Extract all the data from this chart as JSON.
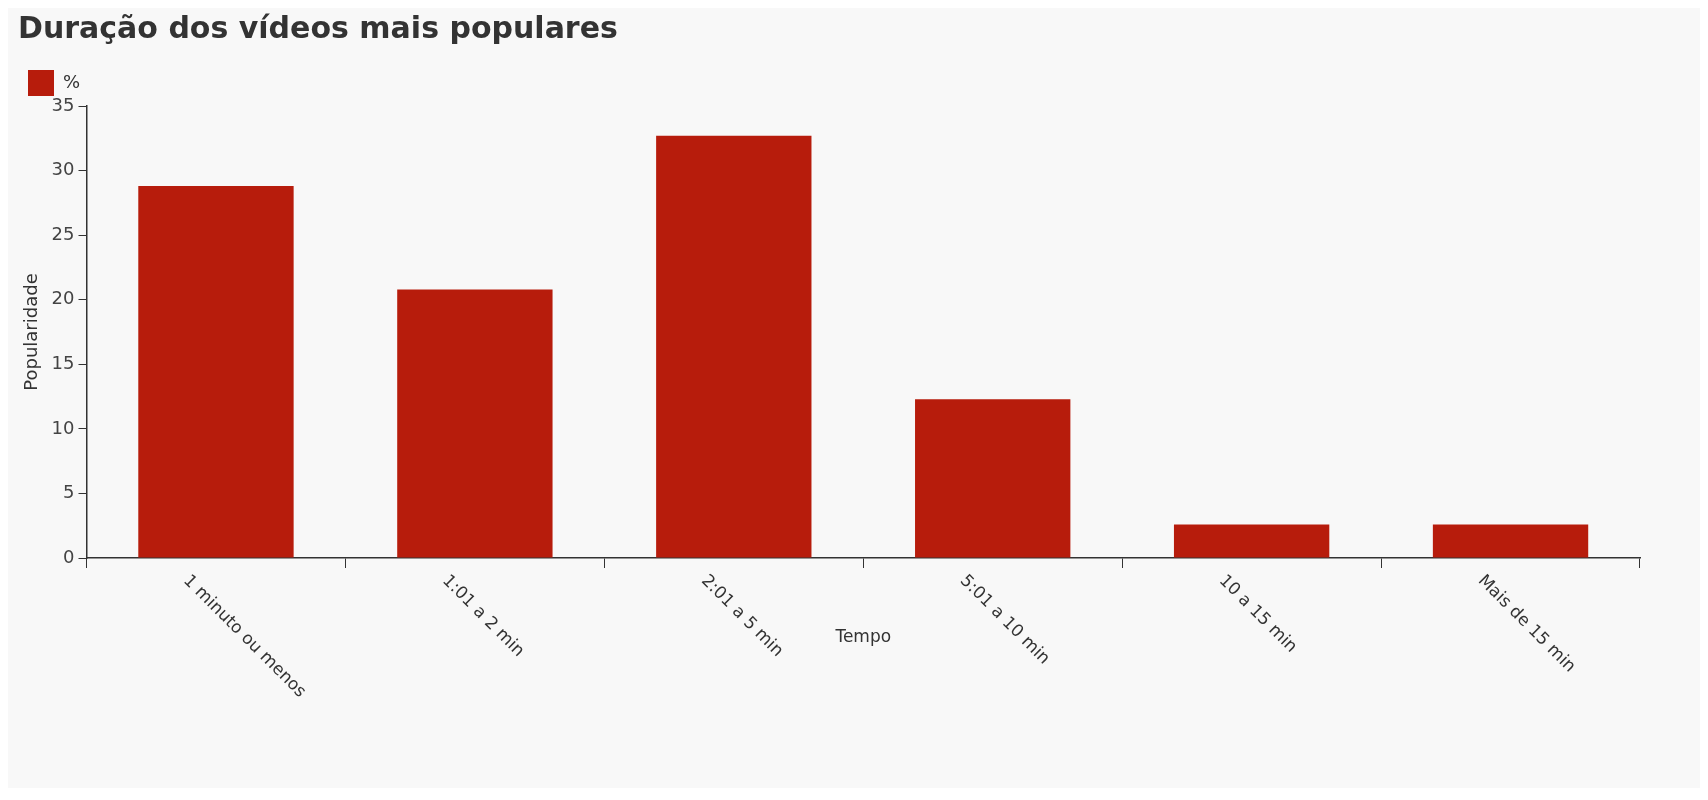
{
  "chart_data": {
    "type": "bar",
    "title": "Duração dos vídeos mais populares",
    "xlabel": "Tempo",
    "ylabel": "Popularidade",
    "categories": [
      "1 minuto ou menos",
      "1:01 a 2 min",
      "2:01 a 5 min",
      "5:01 a 10 min",
      "10 a 15 min",
      "Mais de 15 min"
    ],
    "series": [
      {
        "name": "%",
        "color": "#b71c0c",
        "values": [
          28.8,
          20.8,
          32.7,
          12.3,
          2.6,
          2.6
        ]
      }
    ],
    "ylim": [
      0,
      35
    ],
    "yticks": [
      0,
      5,
      10,
      15,
      20,
      25,
      30,
      35
    ],
    "grid": false,
    "legend": "top left"
  }
}
